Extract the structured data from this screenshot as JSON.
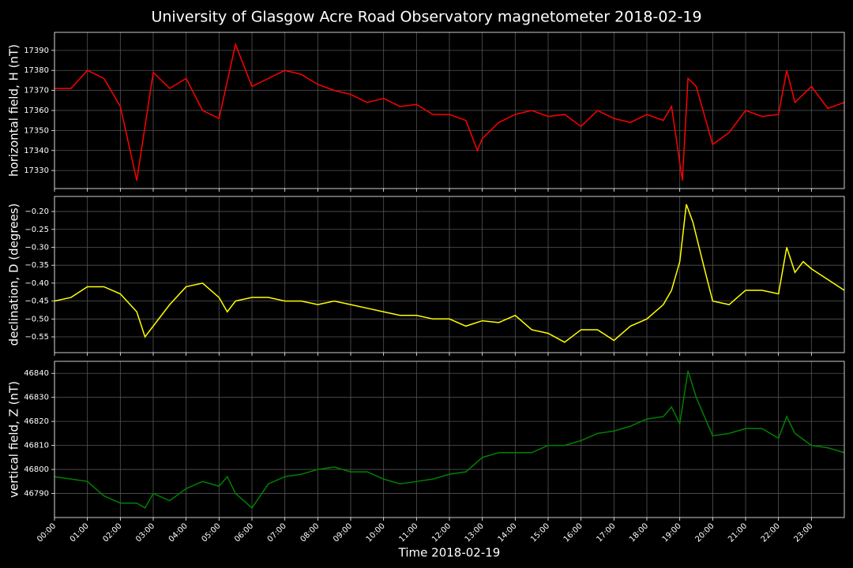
{
  "title": "University of Glasgow Acre Road Observatory magnetometer 2018-02-19",
  "chart_data": [
    {
      "type": "line",
      "ylabel": "horizontal field, H (nT)",
      "grid": true,
      "xlim": [
        0,
        24
      ],
      "xticks": [
        0,
        1,
        2,
        3,
        4,
        5,
        6,
        7,
        8,
        9,
        10,
        11,
        12,
        13,
        14,
        15,
        16,
        17,
        18,
        19,
        20,
        21,
        22,
        23
      ],
      "ylim": [
        17321,
        17399
      ],
      "yticks": [
        17330,
        17340,
        17350,
        17360,
        17370,
        17380,
        17390
      ],
      "series": [
        {
          "name": "H",
          "color": "#ff0000",
          "x": [
            0,
            0.5,
            1,
            1.5,
            2,
            2.5,
            3,
            3.5,
            4,
            4.5,
            5,
            5.5,
            6,
            6.5,
            7,
            7.5,
            8,
            8.5,
            9,
            9.5,
            10,
            10.5,
            11,
            11.5,
            12,
            12.5,
            12.85,
            13,
            13.5,
            14,
            14.5,
            15,
            15.5,
            16,
            16.5,
            17,
            17.5,
            18,
            18.5,
            18.75,
            19.08,
            19.25,
            19.5,
            20,
            20.5,
            21,
            21.5,
            22,
            22.25,
            22.5,
            23,
            23.5,
            24
          ],
          "values": [
            17371,
            17371,
            17380,
            17376,
            17362,
            17325,
            17379,
            17371,
            17376,
            17360,
            17356,
            17393,
            17372,
            17376,
            17380,
            17378,
            17373,
            17370,
            17368,
            17364,
            17366,
            17362,
            17363,
            17358,
            17358,
            17355,
            17340,
            17346,
            17354,
            17358,
            17360,
            17357,
            17358,
            17352,
            17360,
            17356,
            17354,
            17358,
            17355,
            17362,
            17325,
            17376,
            17372,
            17343,
            17349,
            17360,
            17357,
            17358,
            17380,
            17364,
            17372,
            17361,
            17364
          ]
        }
      ]
    },
    {
      "type": "line",
      "ylabel": "declination, D (degrees)",
      "grid": true,
      "xlim": [
        0,
        24
      ],
      "xticks": [
        0,
        1,
        2,
        3,
        4,
        5,
        6,
        7,
        8,
        9,
        10,
        11,
        12,
        13,
        14,
        15,
        16,
        17,
        18,
        19,
        20,
        21,
        22,
        23
      ],
      "ylim": [
        -0.594,
        -0.158
      ],
      "yticks": [
        {
          "value": -0.55,
          "label": "−0.55"
        },
        {
          "value": -0.5,
          "label": "−0.50"
        },
        {
          "value": -0.45,
          "label": "−0.45"
        },
        {
          "value": -0.4,
          "label": "−0.40"
        },
        {
          "value": -0.35,
          "label": "−0.35"
        },
        {
          "value": -0.3,
          "label": "−0.30"
        },
        {
          "value": -0.25,
          "label": "−0.25"
        },
        {
          "value": -0.2,
          "label": "−0.20"
        }
      ],
      "series": [
        {
          "name": "D",
          "color": "#ffff00",
          "x": [
            0,
            0.5,
            1,
            1.5,
            2,
            2.5,
            2.75,
            3,
            3.5,
            4,
            4.5,
            5,
            5.25,
            5.5,
            6,
            6.5,
            7,
            7.5,
            8,
            8.5,
            9,
            9.5,
            10,
            10.5,
            11,
            11.5,
            12,
            12.5,
            13,
            13.5,
            14,
            14.5,
            15,
            15.5,
            16,
            16.5,
            17,
            17.5,
            18,
            18.5,
            18.75,
            19,
            19.2,
            19.4,
            19.75,
            20,
            20.5,
            21,
            21.5,
            22,
            22.25,
            22.5,
            22.75,
            23,
            23.5,
            24
          ],
          "values": [
            -0.45,
            -0.44,
            -0.41,
            -0.41,
            -0.43,
            -0.48,
            -0.55,
            -0.52,
            -0.46,
            -0.41,
            -0.4,
            -0.44,
            -0.48,
            -0.45,
            -0.44,
            -0.44,
            -0.45,
            -0.45,
            -0.46,
            -0.45,
            -0.46,
            -0.47,
            -0.48,
            -0.49,
            -0.49,
            -0.5,
            -0.5,
            -0.52,
            -0.505,
            -0.51,
            -0.49,
            -0.53,
            -0.54,
            -0.565,
            -0.53,
            -0.53,
            -0.56,
            -0.52,
            -0.5,
            -0.46,
            -0.42,
            -0.34,
            -0.18,
            -0.23,
            -0.36,
            -0.45,
            -0.46,
            -0.42,
            -0.42,
            -0.43,
            -0.3,
            -0.37,
            -0.34,
            -0.36,
            -0.39,
            -0.42
          ]
        }
      ]
    },
    {
      "type": "line",
      "ylabel": "vertical field, Z (nT)",
      "xlabel": "Time 2018-02-19",
      "grid": true,
      "xlim": [
        0,
        24
      ],
      "xticks": [
        {
          "value": 0,
          "label": "00:00"
        },
        {
          "value": 1,
          "label": "01:00"
        },
        {
          "value": 2,
          "label": "02:00"
        },
        {
          "value": 3,
          "label": "03:00"
        },
        {
          "value": 4,
          "label": "04:00"
        },
        {
          "value": 5,
          "label": "05:00"
        },
        {
          "value": 6,
          "label": "06:00"
        },
        {
          "value": 7,
          "label": "07:00"
        },
        {
          "value": 8,
          "label": "08:00"
        },
        {
          "value": 9,
          "label": "09:00"
        },
        {
          "value": 10,
          "label": "10:00"
        },
        {
          "value": 11,
          "label": "11:00"
        },
        {
          "value": 12,
          "label": "12:00"
        },
        {
          "value": 13,
          "label": "13:00"
        },
        {
          "value": 14,
          "label": "14:00"
        },
        {
          "value": 15,
          "label": "15:00"
        },
        {
          "value": 16,
          "label": "16:00"
        },
        {
          "value": 17,
          "label": "17:00"
        },
        {
          "value": 18,
          "label": "18:00"
        },
        {
          "value": 19,
          "label": "19:00"
        },
        {
          "value": 20,
          "label": "20:00"
        },
        {
          "value": 21,
          "label": "21:00"
        },
        {
          "value": 22,
          "label": "22:00"
        },
        {
          "value": 23,
          "label": "23:00"
        }
      ],
      "ylim": [
        46780,
        46845
      ],
      "yticks": [
        46790,
        46800,
        46810,
        46820,
        46830,
        46840
      ],
      "series": [
        {
          "name": "Z",
          "color": "#008000",
          "x": [
            0,
            0.5,
            1,
            1.5,
            2,
            2.5,
            2.75,
            3,
            3.5,
            4,
            4.5,
            5,
            5.25,
            5.5,
            6,
            6.5,
            7,
            7.5,
            8,
            8.5,
            9,
            9.5,
            10,
            10.5,
            11,
            11.5,
            12,
            12.5,
            13,
            13.5,
            14,
            14.5,
            15,
            15.5,
            16,
            16.5,
            17,
            17.5,
            18,
            18.5,
            18.75,
            19,
            19.25,
            19.5,
            20,
            20.5,
            21,
            21.5,
            22,
            22.25,
            22.5,
            23,
            23.5,
            24
          ],
          "values": [
            46797,
            46796,
            46795,
            46789,
            46786,
            46786,
            46784,
            46790,
            46787,
            46792,
            46795,
            46793,
            46797,
            46790,
            46784,
            46794,
            46797,
            46798,
            46800,
            46801,
            46799,
            46799,
            46796,
            46794,
            46795,
            46796,
            46798,
            46799,
            46805,
            46807,
            46807,
            46807,
            46810,
            46810,
            46812,
            46815,
            46816,
            46818,
            46821,
            46822,
            46826,
            46819,
            46841,
            46830,
            46814,
            46815,
            46817,
            46817,
            46813,
            46822,
            46815,
            46810,
            46809,
            46807
          ]
        }
      ]
    }
  ]
}
